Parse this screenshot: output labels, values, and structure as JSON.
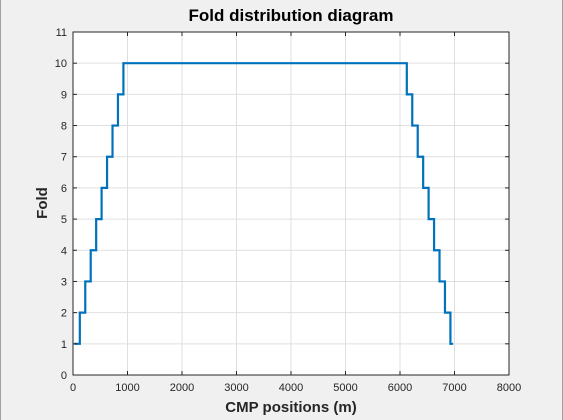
{
  "chart_data": {
    "type": "line",
    "title": "Fold distribution diagram",
    "xlabel": "CMP positions (m)",
    "ylabel": "Fold",
    "xlim": [
      0,
      8000
    ],
    "ylim": [
      0,
      11
    ],
    "xticks": [
      0,
      1000,
      2000,
      3000,
      4000,
      5000,
      6000,
      7000,
      8000
    ],
    "yticks": [
      0,
      1,
      2,
      3,
      4,
      5,
      6,
      7,
      8,
      9,
      10,
      11
    ],
    "grid": true,
    "line_color": "#0072bd",
    "series": [
      {
        "x": [
          25,
          125,
          125,
          225,
          225,
          325,
          325,
          425,
          425,
          525,
          525,
          625,
          625,
          725,
          725,
          825,
          825,
          925,
          925,
          6125,
          6125,
          6225,
          6225,
          6325,
          6325,
          6425,
          6425,
          6525,
          6525,
          6625,
          6625,
          6725,
          6725,
          6825,
          6825,
          6925,
          6925,
          6975
        ],
        "y": [
          1,
          1,
          2,
          2,
          3,
          3,
          4,
          4,
          5,
          5,
          6,
          6,
          7,
          7,
          8,
          8,
          9,
          9,
          10,
          10,
          9,
          9,
          8,
          8,
          7,
          7,
          6,
          6,
          5,
          5,
          4,
          4,
          3,
          3,
          2,
          2,
          1,
          1
        ]
      }
    ]
  }
}
